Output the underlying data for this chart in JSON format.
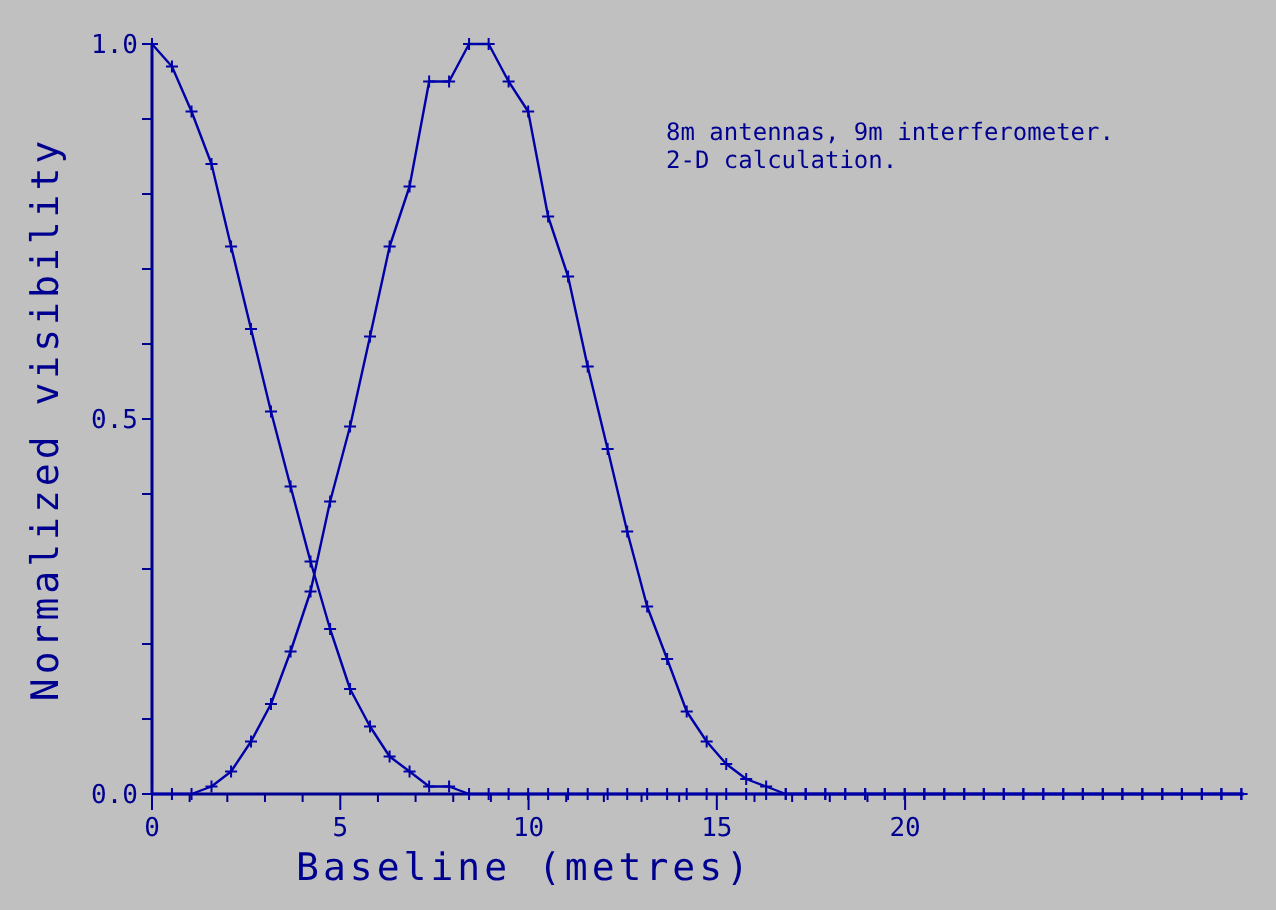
{
  "chart_data": {
    "type": "line",
    "xlabel": "Baseline (metres)",
    "ylabel": "Normalized visibility",
    "annotations": [
      "8m antennas, 9m interferometer.",
      "2-D calculation."
    ],
    "x": [
      0,
      0.53,
      1.05,
      1.58,
      2.1,
      2.63,
      3.16,
      3.68,
      4.21,
      4.73,
      5.26,
      5.79,
      6.31,
      6.84,
      7.36,
      7.89,
      8.42,
      8.94,
      9.47,
      9.99,
      10.52,
      11.05,
      11.57,
      12.1,
      12.62,
      13.15,
      13.68,
      14.2,
      14.73,
      15.25,
      15.78,
      16.31,
      16.83,
      17.36,
      17.88,
      18.41,
      18.94,
      19.46,
      19.99,
      20.51,
      21.04,
      21.57,
      22.09,
      22.62,
      23.14,
      23.67,
      24.2,
      24.72,
      25.25,
      25.77,
      26.3,
      26.83,
      27.35,
      27.88,
      28.4,
      28.93
    ],
    "series": [
      {
        "color": "#0000a8",
        "values": [
          1.0,
          0.97,
          0.91,
          0.84,
          0.73,
          0.62,
          0.51,
          0.41,
          0.31,
          0.22,
          0.14,
          0.09,
          0.05,
          0.03,
          0.01,
          0.01,
          0,
          0,
          0,
          0,
          0,
          0,
          0,
          0,
          0,
          0,
          0,
          0,
          0,
          0,
          0,
          0,
          0,
          0,
          0,
          0,
          0,
          0,
          0,
          0,
          0,
          0,
          0,
          0,
          0,
          0,
          0,
          0,
          0,
          0,
          0,
          0,
          0,
          0,
          0,
          0
        ]
      },
      {
        "color": "#0000a8",
        "values": [
          0,
          0,
          0,
          0.01,
          0.03,
          0.07,
          0.12,
          0.19,
          0.27,
          0.39,
          0.49,
          0.61,
          0.73,
          0.81,
          0.95,
          0.95,
          1.0,
          1.0,
          0.95,
          0.91,
          0.77,
          0.69,
          0.57,
          0.46,
          0.35,
          0.25,
          0.18,
          0.11,
          0.07,
          0.04,
          0.02,
          0.01,
          0,
          0,
          0,
          0,
          0,
          0,
          0,
          0,
          0,
          0,
          0,
          0,
          0,
          0,
          0,
          0,
          0,
          0,
          0,
          0,
          0,
          0,
          0,
          0
        ]
      }
    ],
    "xlim": [
      0,
      29
    ],
    "ylim": [
      0,
      1
    ],
    "xticks": [
      0,
      {
        "value": 1,
        "label": null
      },
      {
        "value": 2,
        "label": null
      },
      {
        "value": 3,
        "label": null
      },
      {
        "value": 4,
        "label": null
      },
      5,
      {
        "value": 6,
        "label": null
      },
      {
        "value": 7,
        "label": null
      },
      {
        "value": 8,
        "label": null
      },
      {
        "value": 9,
        "label": null
      },
      10,
      {
        "value": 11,
        "label": null
      },
      {
        "value": 12,
        "label": null
      },
      {
        "value": 13,
        "label": null
      },
      {
        "value": 14,
        "label": null
      },
      15,
      {
        "value": 16,
        "label": null
      },
      {
        "value": 17,
        "label": null
      },
      {
        "value": 18,
        "label": null
      },
      {
        "value": 19,
        "label": null
      },
      20
    ],
    "yticks": [
      {
        "value": 0,
        "label": "0.0"
      },
      {
        "value": 0.1,
        "label": null
      },
      {
        "value": 0.2,
        "label": null
      },
      {
        "value": 0.3,
        "label": null
      },
      {
        "value": 0.4,
        "label": null
      },
      {
        "value": 0.5,
        "label": "0.5"
      },
      {
        "value": 0.6,
        "label": null
      },
      {
        "value": 0.7,
        "label": null
      },
      {
        "value": 0.8,
        "label": null
      },
      {
        "value": 0.9,
        "label": null
      },
      {
        "value": 1,
        "label": "1.0"
      }
    ],
    "grid": false,
    "marker": "cross",
    "line_style": "solid"
  }
}
